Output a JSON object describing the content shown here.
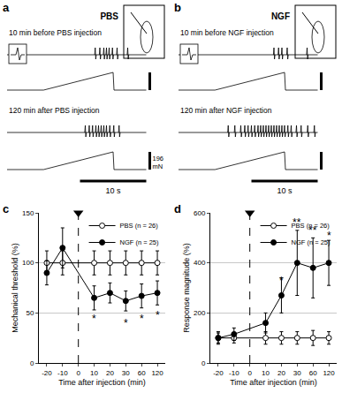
{
  "chart_data": [
    {
      "type": "trace",
      "panel": "a",
      "label": "PBS",
      "xlim": [
        0,
        21
      ],
      "recordings": [
        {
          "title": "10 min before PBS injection",
          "spikes": [
            13.3,
            14.0,
            14.6,
            15.0,
            15.4,
            15.9,
            16.6,
            18.2
          ],
          "ramp": {
            "start": 5.5,
            "end": 16,
            "peak": 196
          }
        },
        {
          "title": "120 min after PBS injection",
          "spikes": [
            11.8,
            12.4,
            12.9,
            13.4,
            13.8,
            14.2,
            14.6,
            15.0,
            15.5,
            16.1,
            16.9
          ],
          "ramp": {
            "start": 5.5,
            "end": 16,
            "peak": 196
          }
        }
      ],
      "scale_bars": {
        "force": {
          "value": 196,
          "label": "196 mN"
        },
        "time": {
          "value": 10,
          "label": "10 s"
        }
      }
    },
    {
      "type": "trace",
      "panel": "b",
      "label": "NGF",
      "xlim": [
        0,
        21
      ],
      "recordings": [
        {
          "title": "10 min before NGF injection",
          "spikes": [
            14.4,
            15.1,
            15.6,
            16.4,
            19.4
          ],
          "ramp": {
            "start": 5.5,
            "end": 16,
            "peak": 196
          }
        },
        {
          "title": "120 min after NGF injection",
          "spikes": [
            7.5,
            8.5,
            9.4,
            10.0,
            10.5,
            11.0,
            11.5,
            12.0,
            12.4,
            12.8,
            13.2,
            13.6,
            14.0,
            14.4,
            14.8,
            15.2,
            15.6,
            16.0,
            16.5,
            17.0,
            17.8,
            18.5,
            19.5,
            20.5
          ],
          "ramp": {
            "start": 5.5,
            "end": 16,
            "peak": 196
          }
        }
      ],
      "scale_bars": {
        "force": {
          "value": 196
        },
        "time": {
          "value": 10,
          "label": "10 s"
        }
      }
    },
    {
      "type": "line",
      "panel": "c",
      "xlabel": "Time after injection (min)",
      "ylabel": "Mechanical threshold (%)",
      "categories": [
        "-20",
        "-10",
        "0",
        "10",
        "20",
        "30",
        "60",
        "120"
      ],
      "series": [
        {
          "name": "PBS (n = 26)",
          "color": "#000000",
          "marker": "circle-open",
          "line_style": "solid",
          "values": [
            100,
            100,
            null,
            100,
            100,
            100,
            100,
            100
          ],
          "errors": [
            12,
            12,
            null,
            12,
            12,
            12,
            12,
            12
          ]
        },
        {
          "name": "NGF (n = 25)",
          "color": "#000000",
          "marker": "circle",
          "line_style": "solid",
          "values": [
            90,
            115,
            null,
            65,
            70,
            62,
            67,
            70
          ],
          "errors": [
            12,
            20,
            null,
            12,
            10,
            10,
            12,
            12
          ]
        }
      ],
      "ylim": [
        0,
        150
      ],
      "yticks": [
        0,
        50,
        100,
        150
      ],
      "grid": true,
      "legend": "top-right",
      "annotations": [
        {
          "x": "0",
          "marker": "triangle-down",
          "line_style": "dashed"
        },
        {
          "x": "10",
          "y": 44,
          "text": "*"
        },
        {
          "x": "30",
          "y": 40,
          "text": "*"
        },
        {
          "x": "60",
          "y": 44,
          "text": "*"
        },
        {
          "x": "120",
          "y": 48,
          "text": "*"
        }
      ]
    },
    {
      "type": "line",
      "panel": "d",
      "xlabel": "Time after injection (min)",
      "ylabel": "Response magnitude (%)",
      "categories": [
        "-20",
        "-10",
        "0",
        "10",
        "20",
        "30",
        "60",
        "120"
      ],
      "series": [
        {
          "name": "PBS (n = 26)",
          "color": "#000000",
          "marker": "circle-open",
          "line_style": "solid",
          "values": [
            100,
            100,
            null,
            100,
            100,
            100,
            100,
            100
          ],
          "errors": [
            25,
            20,
            null,
            25,
            25,
            25,
            30,
            25
          ]
        },
        {
          "name": "NGF (n = 25)",
          "color": "#000000",
          "marker": "circle",
          "line_style": "solid",
          "values": [
            100,
            115,
            null,
            160,
            270,
            400,
            380,
            400
          ],
          "errors": [
            20,
            25,
            null,
            40,
            70,
            130,
            120,
            90
          ]
        }
      ],
      "ylim": [
        0,
        600
      ],
      "yticks": [
        0,
        200,
        400,
        600
      ],
      "grid": true,
      "legend": "top-right",
      "annotations": [
        {
          "x": "0",
          "marker": "triangle-down",
          "line_style": "dashed"
        },
        {
          "x": "20",
          "y": 330,
          "text": "*"
        },
        {
          "x": "30",
          "y": 560,
          "text": "**"
        },
        {
          "x": "60",
          "y": 530,
          "text": "**"
        },
        {
          "x": "120",
          "y": 510,
          "text": "*"
        }
      ]
    }
  ]
}
